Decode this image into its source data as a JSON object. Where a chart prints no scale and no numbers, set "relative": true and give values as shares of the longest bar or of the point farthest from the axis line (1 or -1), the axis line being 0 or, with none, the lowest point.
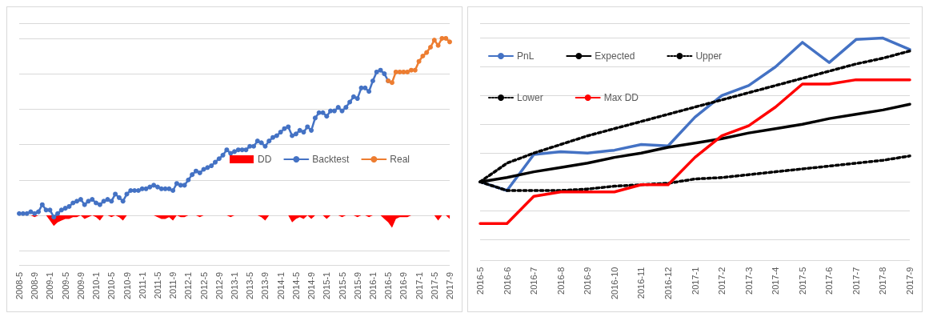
{
  "chart_data": [
    {
      "type": "line",
      "relative": true,
      "grid": "y",
      "legend": "right",
      "categories": [
        "2008-5",
        null,
        null,
        null,
        "2008-9",
        null,
        null,
        null,
        "2009-1",
        null,
        null,
        null,
        "2009-5",
        null,
        null,
        null,
        "2009-9",
        null,
        null,
        null,
        "2010-1",
        null,
        null,
        null,
        "2010-5",
        null,
        null,
        null,
        "2010-9",
        null,
        null,
        null,
        "2011-1",
        null,
        null,
        null,
        "2011-5",
        null,
        null,
        null,
        "2011-9",
        null,
        null,
        null,
        "2012-1",
        null,
        null,
        null,
        "2012-5",
        null,
        null,
        null,
        "2012-9",
        null,
        null,
        null,
        "2013-1",
        null,
        null,
        null,
        "2013-5",
        null,
        null,
        null,
        "2013-9",
        null,
        null,
        null,
        "2014-1",
        null,
        null,
        null,
        "2014-5",
        null,
        null,
        null,
        "2014-9",
        null,
        null,
        null,
        "2015-1",
        null,
        null,
        null,
        "2015-5",
        null,
        null,
        null,
        "2015-9",
        null,
        null,
        null,
        "2016-1",
        null,
        null,
        null,
        "2016-5",
        null,
        null,
        null,
        "2016-9",
        null,
        null,
        null,
        "2017-1",
        null,
        null,
        null,
        "2017-5",
        null,
        null,
        null,
        "2017-9"
      ],
      "series": [
        {
          "name": "DD",
          "type": "area",
          "marker": "none",
          "color": "#ff0000",
          "values": [
            0,
            0,
            0,
            0,
            -0.01,
            0,
            0,
            0,
            -0.03,
            -0.06,
            -0.04,
            -0.03,
            -0.02,
            -0.02,
            -0.01,
            -0.01,
            0,
            -0.02,
            -0.01,
            0,
            -0.01,
            -0.03,
            0,
            0,
            -0.01,
            0,
            -0.01,
            -0.03,
            0,
            0,
            0,
            0,
            0,
            0,
            0,
            0,
            -0.01,
            -0.02,
            -0.02,
            -0.01,
            -0.03,
            0,
            -0.01,
            -0.01,
            0,
            0,
            0,
            -0.01,
            0,
            0,
            0,
            0,
            0,
            0,
            0,
            -0.01,
            0,
            0,
            0,
            0,
            0,
            0,
            0,
            -0.01,
            -0.03,
            0,
            0,
            0,
            0,
            0,
            0,
            -0.04,
            -0.02,
            -0.01,
            -0.02,
            0,
            -0.02,
            0,
            0,
            0,
            -0.02,
            0,
            0,
            0,
            -0.01,
            0,
            0,
            0,
            -0.01,
            0,
            0,
            -0.01,
            0,
            0,
            0,
            -0.02,
            -0.04,
            -0.07,
            -0.02,
            -0.01,
            -0.01,
            -0.01,
            0,
            0,
            0,
            0,
            0,
            0,
            0,
            -0.03,
            0,
            0,
            -0.02
          ]
        },
        {
          "name": "Backtest",
          "marker": "circle",
          "color": "#4472c4",
          "values": [
            0.01,
            0.01,
            0.01,
            0.02,
            0.01,
            0.02,
            0.06,
            0.03,
            0.03,
            -0.01,
            0.01,
            0.03,
            0.04,
            0.05,
            0.07,
            0.08,
            0.09,
            0.06,
            0.08,
            0.09,
            0.07,
            0.06,
            0.08,
            0.09,
            0.08,
            0.12,
            0.1,
            0.08,
            0.12,
            0.14,
            0.14,
            0.14,
            0.15,
            0.15,
            0.16,
            0.17,
            0.16,
            0.15,
            0.15,
            0.15,
            0.14,
            0.18,
            0.17,
            0.17,
            0.2,
            0.23,
            0.25,
            0.24,
            0.26,
            0.27,
            0.28,
            0.3,
            0.32,
            0.34,
            0.37,
            0.35,
            0.36,
            0.37,
            0.37,
            0.37,
            0.39,
            0.39,
            0.42,
            0.41,
            0.39,
            0.42,
            0.44,
            0.45,
            0.47,
            0.49,
            0.5,
            0.45,
            0.46,
            0.48,
            0.47,
            0.5,
            0.48,
            0.55,
            0.58,
            0.58,
            0.56,
            0.59,
            0.59,
            0.61,
            0.59,
            0.61,
            0.64,
            0.67,
            0.66,
            0.72,
            0.72,
            0.7,
            0.76,
            0.81,
            0.82,
            0.8,
            0.76,
            null,
            null,
            null,
            null,
            null,
            null,
            null,
            null,
            null,
            null,
            null,
            null,
            null,
            null,
            null,
            null
          ]
        },
        {
          "name": "Real",
          "marker": "circle",
          "color": "#ed7d31",
          "values": [
            null,
            null,
            null,
            null,
            null,
            null,
            null,
            null,
            null,
            null,
            null,
            null,
            null,
            null,
            null,
            null,
            null,
            null,
            null,
            null,
            null,
            null,
            null,
            null,
            null,
            null,
            null,
            null,
            null,
            null,
            null,
            null,
            null,
            null,
            null,
            null,
            null,
            null,
            null,
            null,
            null,
            null,
            null,
            null,
            null,
            null,
            null,
            null,
            null,
            null,
            null,
            null,
            null,
            null,
            null,
            null,
            null,
            null,
            null,
            null,
            null,
            null,
            null,
            null,
            null,
            null,
            null,
            null,
            null,
            null,
            null,
            null,
            null,
            null,
            null,
            null,
            null,
            null,
            null,
            null,
            null,
            null,
            null,
            null,
            null,
            null,
            null,
            null,
            null,
            null,
            null,
            null,
            null,
            null,
            null,
            null,
            0.76,
            0.75,
            0.81,
            0.81,
            0.81,
            0.81,
            0.82,
            0.82,
            0.87,
            0.9,
            0.92,
            0.95,
            0.99,
            0.96,
            1,
            1,
            0.98
          ]
        }
      ]
    },
    {
      "type": "line",
      "relative": true,
      "grid": "y",
      "legend": "top left",
      "marker": "none",
      "categories": [
        "2016-5",
        "2016-6",
        "2016-7",
        "2016-8",
        "2016-9",
        "2016-10",
        "2016-11",
        "2016-12",
        "2017-1",
        "2017-2",
        "2017-3",
        "2017-4",
        "2017-5",
        "2017-6",
        "2017-7",
        "2017-8",
        "2017-9"
      ],
      "series": [
        {
          "name": "PnL",
          "color": "#4472c4",
          "line_style": "solid",
          "values": [
            0,
            -0.06,
            0.19,
            0.21,
            0.2,
            0.22,
            0.26,
            0.25,
            0.45,
            0.6,
            0.67,
            0.8,
            0.97,
            0.83,
            0.99,
            1,
            0.92
          ]
        },
        {
          "name": "Expected",
          "color": "#000000",
          "line_style": "solid",
          "values": [
            0,
            0.03,
            0.07,
            0.1,
            0.13,
            0.17,
            0.2,
            0.24,
            0.27,
            0.3,
            0.34,
            0.37,
            0.4,
            0.44,
            0.47,
            0.5,
            0.54
          ]
        },
        {
          "name": "Upper",
          "color": "#000000",
          "line_style": "dotted",
          "values": [
            0,
            0.13,
            0.2,
            0.26,
            0.32,
            0.37,
            0.42,
            0.47,
            0.52,
            0.57,
            0.62,
            0.67,
            0.72,
            0.77,
            0.82,
            0.86,
            0.91
          ]
        },
        {
          "name": "Lower",
          "color": "#000000",
          "line_style": "dotted",
          "values": [
            0,
            -0.06,
            -0.06,
            -0.06,
            -0.05,
            -0.03,
            -0.02,
            -0.01,
            0.02,
            0.03,
            0.05,
            0.07,
            0.09,
            0.11,
            0.13,
            0.15,
            0.18
          ]
        },
        {
          "name": "Max DD",
          "color": "#ff0000",
          "line_style": "solid",
          "values": [
            -0.29,
            -0.29,
            -0.1,
            -0.07,
            -0.07,
            -0.07,
            -0.02,
            -0.02,
            0.17,
            0.32,
            0.39,
            0.52,
            0.68,
            0.68,
            0.71,
            0.71,
            0.71
          ]
        }
      ]
    }
  ]
}
